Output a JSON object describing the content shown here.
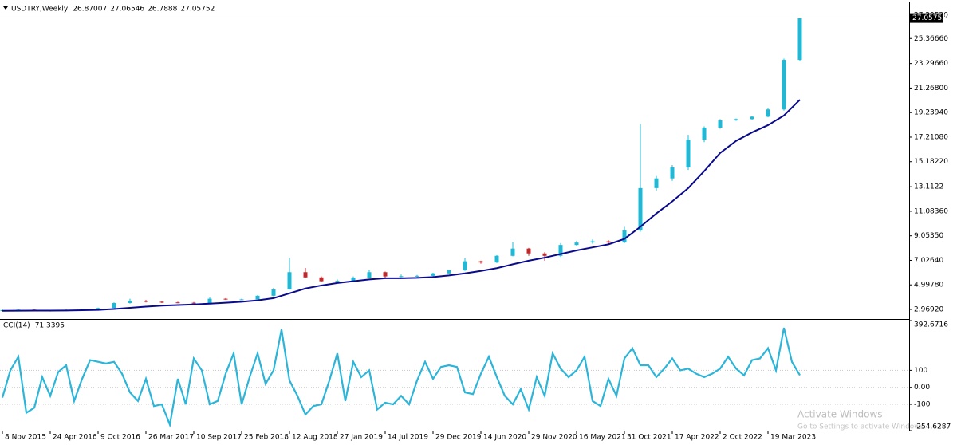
{
  "chart_data": [
    {
      "type": "candlestick",
      "title": "USDTRY,Weekly",
      "header_values": [
        26.87007,
        27.06546,
        26.7888,
        27.05752
      ],
      "x": [
        0,
        8,
        16,
        24,
        32,
        40,
        48,
        56,
        64,
        72,
        80,
        88,
        96,
        104,
        112,
        120,
        128,
        136,
        144,
        152,
        160,
        168,
        176,
        184,
        192,
        200,
        208,
        216,
        224,
        232,
        240,
        248,
        256,
        264,
        272,
        280,
        288,
        296,
        304,
        312,
        320,
        328,
        336,
        344,
        352,
        360,
        368,
        376,
        384,
        392,
        400
      ],
      "series": [
        {
          "up_color": "#1fb8d6",
          "down_color": "#c0282d",
          "open": [
            2.88,
            2.9,
            2.95,
            2.88,
            2.85,
            2.92,
            2.96,
            3.08,
            3.5,
            3.68,
            3.6,
            3.55,
            3.52,
            3.5,
            3.85,
            3.8,
            3.8,
            4.1,
            4.62,
            6.05,
            5.62,
            5.3,
            5.35,
            5.6,
            6.05,
            5.7,
            5.72,
            5.75,
            5.95,
            6.2,
            6.95,
            6.85,
            7.4,
            8.0,
            7.6,
            7.4,
            8.3,
            8.5,
            8.6,
            8.5,
            9.5,
            13.0,
            13.8,
            14.7,
            17.0,
            18.0,
            18.6,
            18.7,
            18.9,
            19.5,
            23.6
          ],
          "high": [
            2.95,
            3.02,
            2.98,
            2.92,
            2.97,
            3.0,
            3.12,
            3.55,
            3.85,
            3.75,
            3.65,
            3.6,
            3.58,
            3.95,
            3.9,
            3.86,
            4.15,
            4.75,
            7.24,
            6.4,
            5.7,
            5.45,
            5.7,
            6.25,
            6.1,
            5.85,
            5.82,
            6.0,
            6.25,
            7.2,
            7.0,
            7.45,
            8.55,
            8.05,
            7.7,
            8.45,
            8.65,
            8.75,
            8.7,
            9.8,
            18.3,
            14.0,
            14.9,
            17.4,
            18.1,
            18.7,
            18.75,
            18.95,
            19.6,
            23.7,
            27.1
          ],
          "low": [
            2.85,
            2.88,
            2.85,
            2.8,
            2.83,
            2.9,
            2.94,
            3.05,
            3.45,
            3.55,
            3.5,
            3.48,
            3.42,
            3.48,
            3.75,
            3.74,
            3.78,
            4.05,
            4.6,
            5.55,
            5.25,
            5.2,
            5.3,
            5.55,
            5.6,
            5.62,
            5.65,
            5.7,
            5.9,
            6.15,
            6.75,
            6.8,
            7.35,
            7.4,
            7.0,
            7.3,
            8.2,
            8.4,
            8.3,
            8.45,
            9.4,
            12.8,
            13.6,
            14.5,
            16.8,
            17.9,
            18.55,
            18.65,
            18.85,
            19.4,
            23.5
          ],
          "close": [
            2.9,
            2.95,
            2.88,
            2.85,
            2.92,
            2.96,
            3.08,
            3.5,
            3.68,
            3.6,
            3.55,
            3.52,
            3.5,
            3.85,
            3.8,
            3.8,
            4.1,
            4.62,
            6.05,
            5.62,
            5.3,
            5.35,
            5.6,
            6.05,
            5.7,
            5.72,
            5.75,
            5.95,
            6.2,
            6.95,
            6.85,
            7.4,
            8.0,
            7.6,
            7.4,
            8.3,
            8.5,
            8.6,
            8.5,
            9.5,
            13.0,
            13.8,
            14.7,
            17.0,
            18.0,
            18.6,
            18.7,
            18.9,
            19.5,
            23.6,
            27.05752
          ]
        },
        {
          "color": "#0a0a8c",
          "values": [
            2.85,
            2.86,
            2.87,
            2.87,
            2.88,
            2.9,
            2.93,
            3.0,
            3.1,
            3.2,
            3.28,
            3.33,
            3.38,
            3.45,
            3.52,
            3.6,
            3.72,
            3.9,
            4.3,
            4.7,
            4.95,
            5.15,
            5.3,
            5.45,
            5.55,
            5.55,
            5.58,
            5.65,
            5.78,
            5.95,
            6.15,
            6.38,
            6.7,
            7.0,
            7.25,
            7.55,
            7.85,
            8.1,
            8.35,
            8.8,
            9.8,
            10.9,
            11.9,
            13.0,
            14.4,
            15.9,
            16.9,
            17.6,
            18.2,
            19.0,
            20.3
          ]
        }
      ],
      "xlim": [
        -1.2,
        454.8
      ],
      "ylim": [
        2.244,
        28.35
      ],
      "yticks": [
        {
          "value": 27.2952,
          "label": "27.29520"
        },
        {
          "value": 25.3666,
          "label": "25.36660"
        },
        {
          "value": 23.2966,
          "label": "23.29660"
        },
        {
          "value": 21.268,
          "label": "21.26800"
        },
        {
          "value": 19.2394,
          "label": "19.23940"
        },
        {
          "value": 17.2108,
          "label": "17.21080"
        },
        {
          "value": 15.1822,
          "label": "15.18220"
        },
        13.1122,
        {
          "value": 11.0836,
          "label": "11.08360"
        },
        {
          "value": 9.0535,
          "label": "9.05350"
        },
        {
          "value": 7.0264,
          "label": "7.02640"
        },
        {
          "value": 4.9978,
          "label": "4.99780"
        },
        {
          "value": 2.9692,
          "label": "2.96920"
        }
      ]
    },
    {
      "type": "line",
      "title": "CCI(14)",
      "x": [
        0,
        4,
        8,
        12,
        16,
        20,
        24,
        28,
        32,
        36,
        40,
        44,
        48,
        52,
        56,
        60,
        64,
        68,
        72,
        76,
        80,
        84,
        88,
        92,
        96,
        100,
        104,
        108,
        112,
        116,
        120,
        124,
        128,
        132,
        136,
        140,
        144,
        148,
        152,
        156,
        160,
        164,
        168,
        172,
        176,
        180,
        184,
        188,
        192,
        196,
        200,
        204,
        208,
        212,
        216,
        220,
        224,
        228,
        232,
        236,
        240,
        244,
        248,
        252,
        256,
        260,
        264,
        268,
        272,
        276,
        280,
        284,
        288,
        292,
        296,
        300,
        304,
        308,
        312,
        316,
        320,
        324,
        328,
        332,
        336,
        340,
        344,
        348,
        352,
        356,
        360,
        364,
        368,
        372,
        376,
        380,
        384,
        388,
        392,
        396,
        400
      ],
      "series": [
        {
          "color": "#2cb5d8",
          "values": [
            -60,
            100,
            180,
            -150,
            -120,
            60,
            -50,
            90,
            130,
            -80,
            50,
            160,
            150,
            140,
            150,
            80,
            -30,
            -80,
            50,
            -110,
            -100,
            -220,
            50,
            -100,
            170,
            100,
            -100,
            -80,
            80,
            200,
            -100,
            60,
            200,
            20,
            100,
            340,
            40,
            -50,
            -160,
            -110,
            -100,
            40,
            200,
            -80,
            150,
            60,
            100,
            -130,
            -90,
            -100,
            -50,
            -100,
            40,
            150,
            50,
            120,
            130,
            120,
            -30,
            -40,
            80,
            180,
            60,
            -50,
            -100,
            -10,
            -130,
            60,
            -50,
            200,
            110,
            60,
            100,
            180,
            -80,
            -110,
            50,
            -50,
            170,
            230,
            130,
            130,
            60,
            110,
            170,
            100,
            110,
            80,
            60,
            80,
            110,
            180,
            110,
            70,
            160,
            170,
            230,
            100,
            350,
            150,
            71.3395
          ]
        }
      ],
      "xlim": [
        -1.2,
        454.8
      ],
      "ylim": [
        -254.6287,
        392.6716
      ],
      "yticks": [
        392.6716,
        100,
        {
          "value": 0,
          "label": "0.00"
        },
        -100,
        -254.6287
      ],
      "xticks": [
        {
          "value": 0,
          "label": "8 Nov 2015"
        },
        {
          "value": 24,
          "label": "24 Apr 2016"
        },
        {
          "value": 48,
          "label": "9 Oct 2016"
        },
        {
          "value": 72,
          "label": "26 Mar 2017"
        },
        {
          "value": 96,
          "label": "10 Sep 2017"
        },
        {
          "value": 120,
          "label": "25 Feb 2018"
        },
        {
          "value": 144,
          "label": "12 Aug 2018"
        },
        {
          "value": 168,
          "label": "27 Jan 2019"
        },
        {
          "value": 192,
          "label": "14 Jul 2019"
        },
        {
          "value": 216,
          "label": "29 Dec 2019"
        },
        {
          "value": 240,
          "label": "14 Jun 2020"
        },
        {
          "value": 264,
          "label": "29 Nov 2020"
        },
        {
          "value": 288,
          "label": "16 May 2021"
        },
        {
          "value": 312,
          "label": "31 Oct 2021"
        },
        {
          "value": 336,
          "label": "17 Apr 2022"
        },
        {
          "value": 360,
          "label": "2 Oct 2022"
        },
        {
          "value": 384,
          "label": "19 Mar 2023"
        }
      ]
    }
  ],
  "watermark": {
    "title": "Activate Windows",
    "subtitle": "Go to Settings to activate Windows."
  }
}
